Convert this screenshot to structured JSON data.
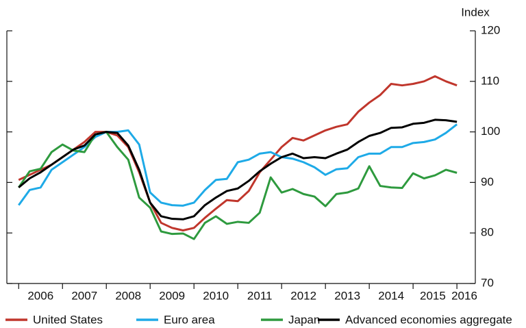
{
  "chart_data": {
    "type": "line",
    "y_label": "Index",
    "x": [
      2006,
      2006.25,
      2006.5,
      2006.75,
      2007,
      2007.25,
      2007.5,
      2007.75,
      2008,
      2008.25,
      2008.5,
      2008.75,
      2009,
      2009.25,
      2009.5,
      2009.75,
      2010,
      2010.25,
      2010.5,
      2010.75,
      2011,
      2011.25,
      2011.5,
      2011.75,
      2012,
      2012.25,
      2012.5,
      2012.75,
      2013,
      2013.25,
      2013.5,
      2013.75,
      2014,
      2014.25,
      2014.5,
      2014.75,
      2015,
      2015.25,
      2015.5,
      2015.75,
      2016
    ],
    "series": [
      {
        "name": "United States",
        "color": "#c0362c",
        "values": [
          90.5,
          91.5,
          92.5,
          93.5,
          95,
          96.5,
          98,
          100,
          100,
          99.3,
          97,
          92,
          86,
          82,
          81,
          80.5,
          81,
          83,
          84.8,
          86.5,
          86.3,
          88.3,
          92,
          94.5,
          97,
          98.8,
          98.3,
          99.3,
          100.3,
          101,
          101.5,
          104,
          105.8,
          107.3,
          109.5,
          109.2,
          109.5,
          110,
          111,
          110,
          109.2
        ]
      },
      {
        "name": "Euro area",
        "color": "#1eaae7",
        "values": [
          85.5,
          88.5,
          89,
          92.5,
          94,
          95.5,
          97,
          99,
          100,
          100,
          100.3,
          97.5,
          88,
          86,
          85.5,
          85.4,
          86,
          88.5,
          90.5,
          90.7,
          94,
          94.5,
          95.7,
          96,
          95,
          94.7,
          94,
          93,
          91.5,
          92.6,
          92.8,
          95,
          95.7,
          95.7,
          97,
          97,
          97.8,
          98,
          98.5,
          99.8,
          101.5
        ]
      },
      {
        "name": "Japan",
        "color": "#2e9a3e",
        "values": [
          89,
          92.2,
          92.7,
          96,
          97.5,
          96.3,
          96,
          99.5,
          100,
          97,
          94.5,
          87,
          85,
          80.3,
          79.8,
          79.9,
          78.8,
          82,
          83.3,
          81.8,
          82.2,
          82,
          84,
          91,
          88,
          88.7,
          87.7,
          87.2,
          85.3,
          87.7,
          88,
          88.8,
          93.2,
          89.3,
          89,
          88.9,
          91.8,
          90.8,
          91.4,
          92.5,
          91.9
        ]
      },
      {
        "name": "Advanced economies aggregate",
        "color": "#000000",
        "values": [
          89,
          90.8,
          92,
          93.5,
          95,
          96.5,
          97.3,
          99.5,
          100,
          99.8,
          97.3,
          92.5,
          86,
          83.3,
          82.8,
          82.7,
          83.3,
          85.5,
          87,
          88.3,
          88.8,
          90.3,
          92.2,
          93.7,
          95,
          95.7,
          94.8,
          95,
          94.8,
          95.7,
          96.5,
          98,
          99.2,
          99.8,
          100.8,
          100.9,
          101.6,
          101.8,
          102.4,
          102.3,
          102
        ]
      }
    ],
    "xlim": [
      2005.73,
      2016.42
    ],
    "xticks": [
      {
        "value": 2006.5,
        "label": "2006"
      },
      {
        "value": 2007.5,
        "label": "2007"
      },
      {
        "value": 2008.5,
        "label": "2008"
      },
      {
        "value": 2009.5,
        "label": "2009"
      },
      {
        "value": 2010.5,
        "label": "2010"
      },
      {
        "value": 2011.5,
        "label": "2011"
      },
      {
        "value": 2012.5,
        "label": "2012"
      },
      {
        "value": 2013.5,
        "label": "2013"
      },
      {
        "value": 2014.5,
        "label": "2014"
      },
      {
        "value": 2015.45,
        "label": "2015"
      },
      {
        "value": 2016.17,
        "label": "2016"
      }
    ],
    "x_tick_marks": [
      2006,
      2007,
      2008,
      2009,
      2010,
      2011,
      2012,
      2013,
      2014,
      2015,
      2016
    ],
    "ylim": [
      70,
      120
    ],
    "yticks": [
      70,
      80,
      90,
      100,
      110,
      120
    ],
    "y_axis_side": "right",
    "legend": "bottom"
  }
}
